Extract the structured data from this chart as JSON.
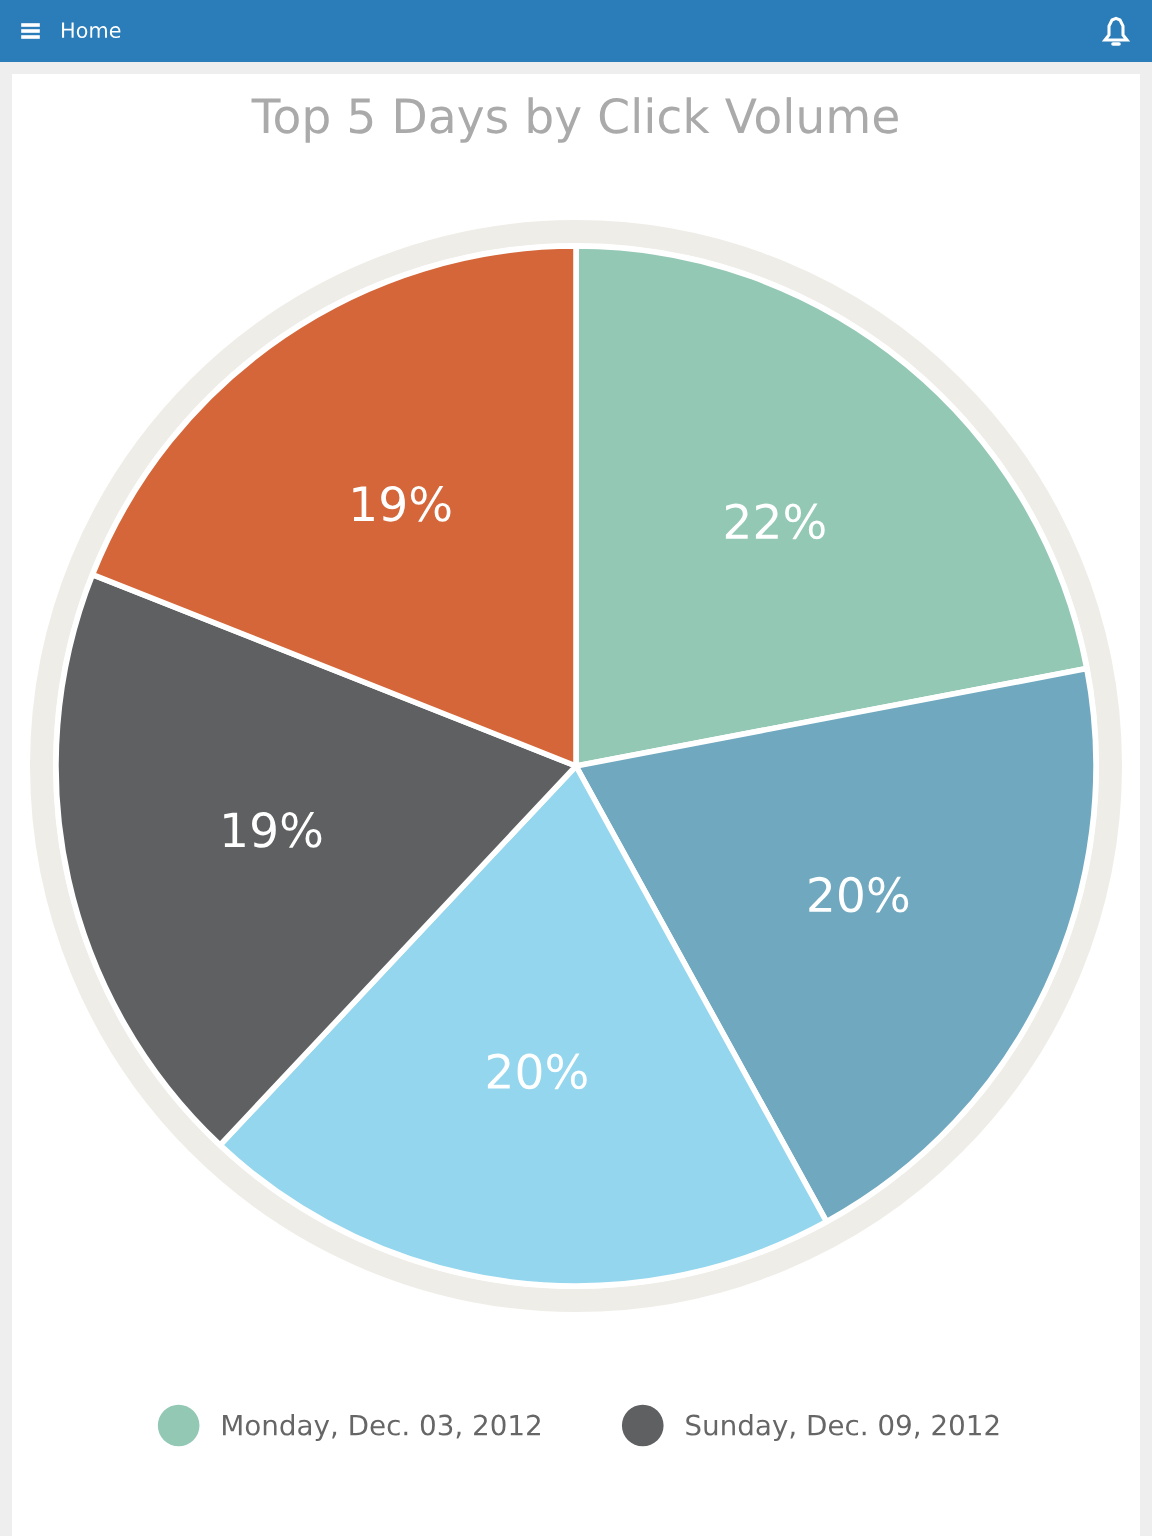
{
  "chart_data": {
    "type": "pie",
    "title": "Top 5 Days by Click Volume",
    "categories": [
      "Monday, Dec. 03, 2012",
      null,
      null,
      "Sunday, Dec. 09, 2012",
      null
    ],
    "values": [
      22,
      20,
      20,
      19,
      19
    ],
    "colors": [
      "#93c8b5",
      "#6fa8bf",
      "#93d6ee",
      "#5f6062",
      "#d4663a"
    ],
    "value_labels": [
      "22%",
      "20%",
      "20%",
      "19%",
      "19%"
    ],
    "legend": "bottom",
    "annotations": [
      "Home"
    ]
  }
}
